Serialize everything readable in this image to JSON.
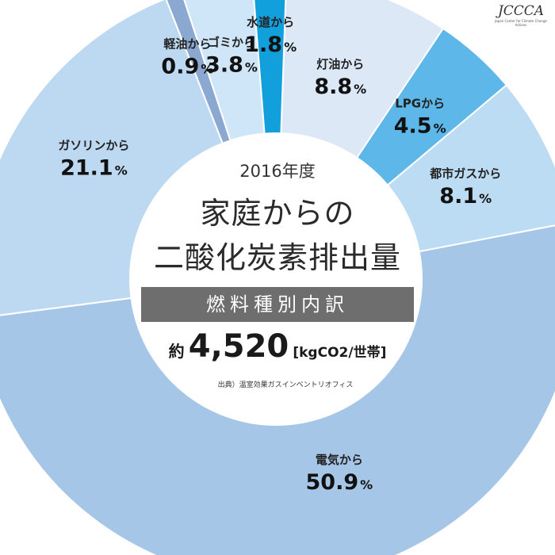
{
  "chart_data": {
    "type": "pie",
    "style": "donut",
    "categories": [
      "灯油から",
      "LPGから",
      "都市ガスから",
      "電気から",
      "ガソリンから",
      "軽油から",
      "ゴミから",
      "水道から"
    ],
    "values": [
      8.8,
      4.5,
      8.1,
      50.9,
      21.1,
      0.9,
      3.8,
      1.8
    ],
    "value_labels": [
      "8.8",
      "4.5",
      "8.1",
      "50.9",
      "21.1",
      "0.9",
      "3.8",
      "1.8"
    ],
    "unit": "%",
    "colors": [
      "#dce8f6",
      "#5db7e8",
      "#bcdcf3",
      "#a6c6e8",
      "#bcd9f1",
      "#8ba8d1",
      "#cfe6f8",
      "#12a0dd"
    ],
    "legend": "none"
  },
  "center": {
    "year": "2016年度",
    "title_line1": "家庭からの",
    "title_line2": "二酸化炭素排出量",
    "subtitle": "燃料種別内訳",
    "total_prefix": "約",
    "total_value": "4,520",
    "total_unit": "[kgCO2/世帯]",
    "source": "出典）温室効果ガスインベントリオフィス"
  },
  "logo": {
    "text": "JCCCA",
    "subtitle": "Japan Center for Climate Change Actions"
  }
}
